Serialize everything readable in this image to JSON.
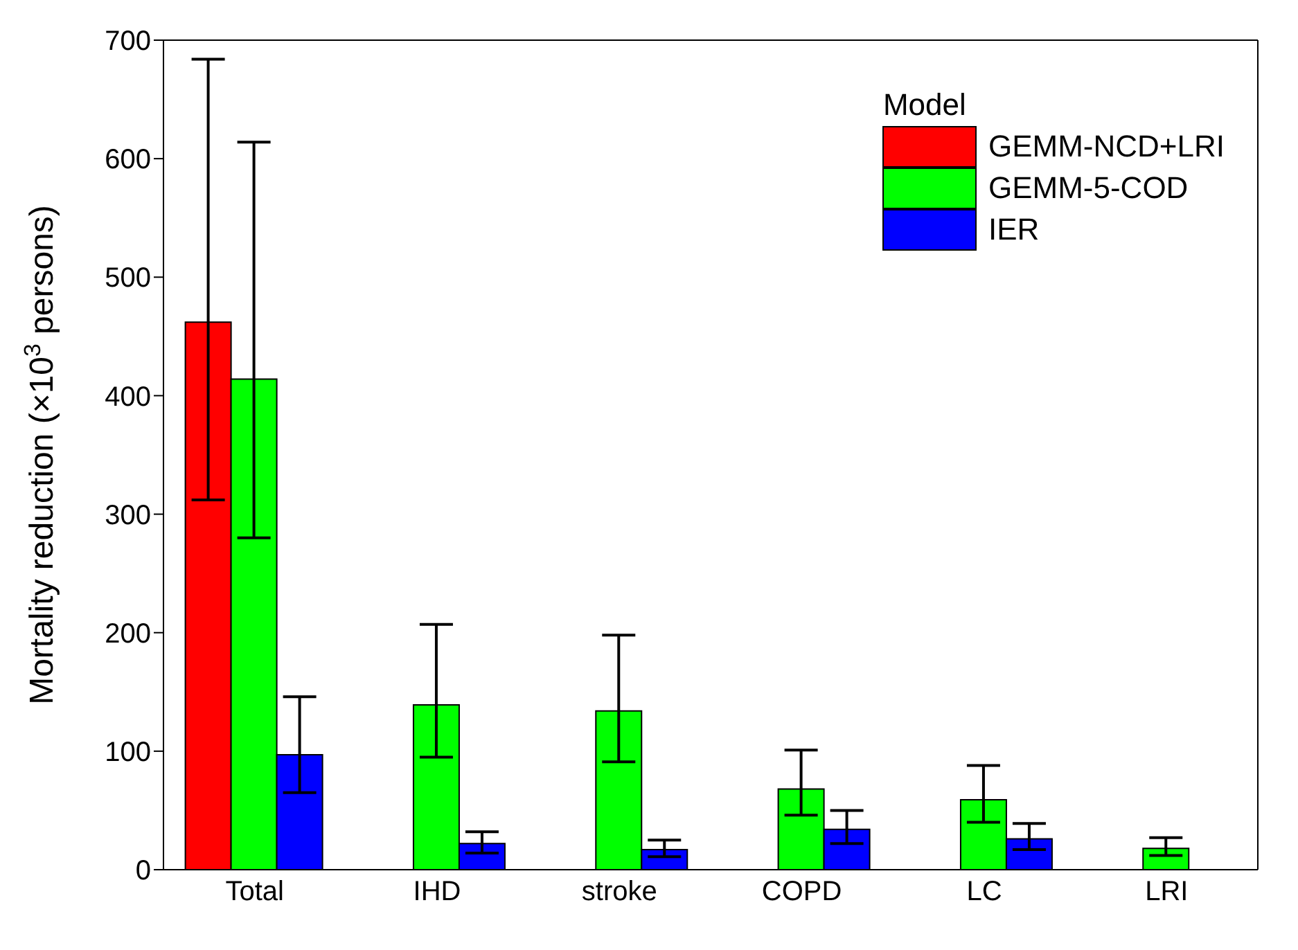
{
  "chart_data": {
    "type": "bar",
    "ylabel": "Mortality reduction (×10$^{3}$ persons)",
    "legend_title": "Model",
    "categories": [
      "Total",
      "IHD",
      "stroke",
      "COPD",
      "LC",
      "LRI"
    ],
    "series": [
      {
        "name": "GEMM-NCD+LRI",
        "color": "#ff0000",
        "values": [
          462,
          null,
          null,
          null,
          null,
          null
        ],
        "errors": [
          [
            312,
            684
          ],
          null,
          null,
          null,
          null,
          null
        ]
      },
      {
        "name": "GEMM-5-COD",
        "color": "#00ff00",
        "values": [
          414,
          139,
          134,
          68,
          59,
          18
        ],
        "errors": [
          [
            280,
            614
          ],
          [
            95,
            207
          ],
          [
            91,
            198
          ],
          [
            46,
            101
          ],
          [
            40,
            88
          ],
          [
            12,
            27
          ]
        ]
      },
      {
        "name": "IER",
        "color": "#0000ff",
        "values": [
          97,
          22,
          17,
          34,
          26,
          null
        ],
        "errors": [
          [
            65,
            146
          ],
          [
            14,
            32
          ],
          [
            11,
            25
          ],
          [
            22,
            50
          ],
          [
            17,
            39
          ],
          null
        ]
      }
    ],
    "ylim": [
      0,
      700
    ],
    "yticks": [
      0,
      100,
      200,
      300,
      400,
      500,
      600,
      700
    ],
    "grid": false,
    "legend": "top right"
  }
}
